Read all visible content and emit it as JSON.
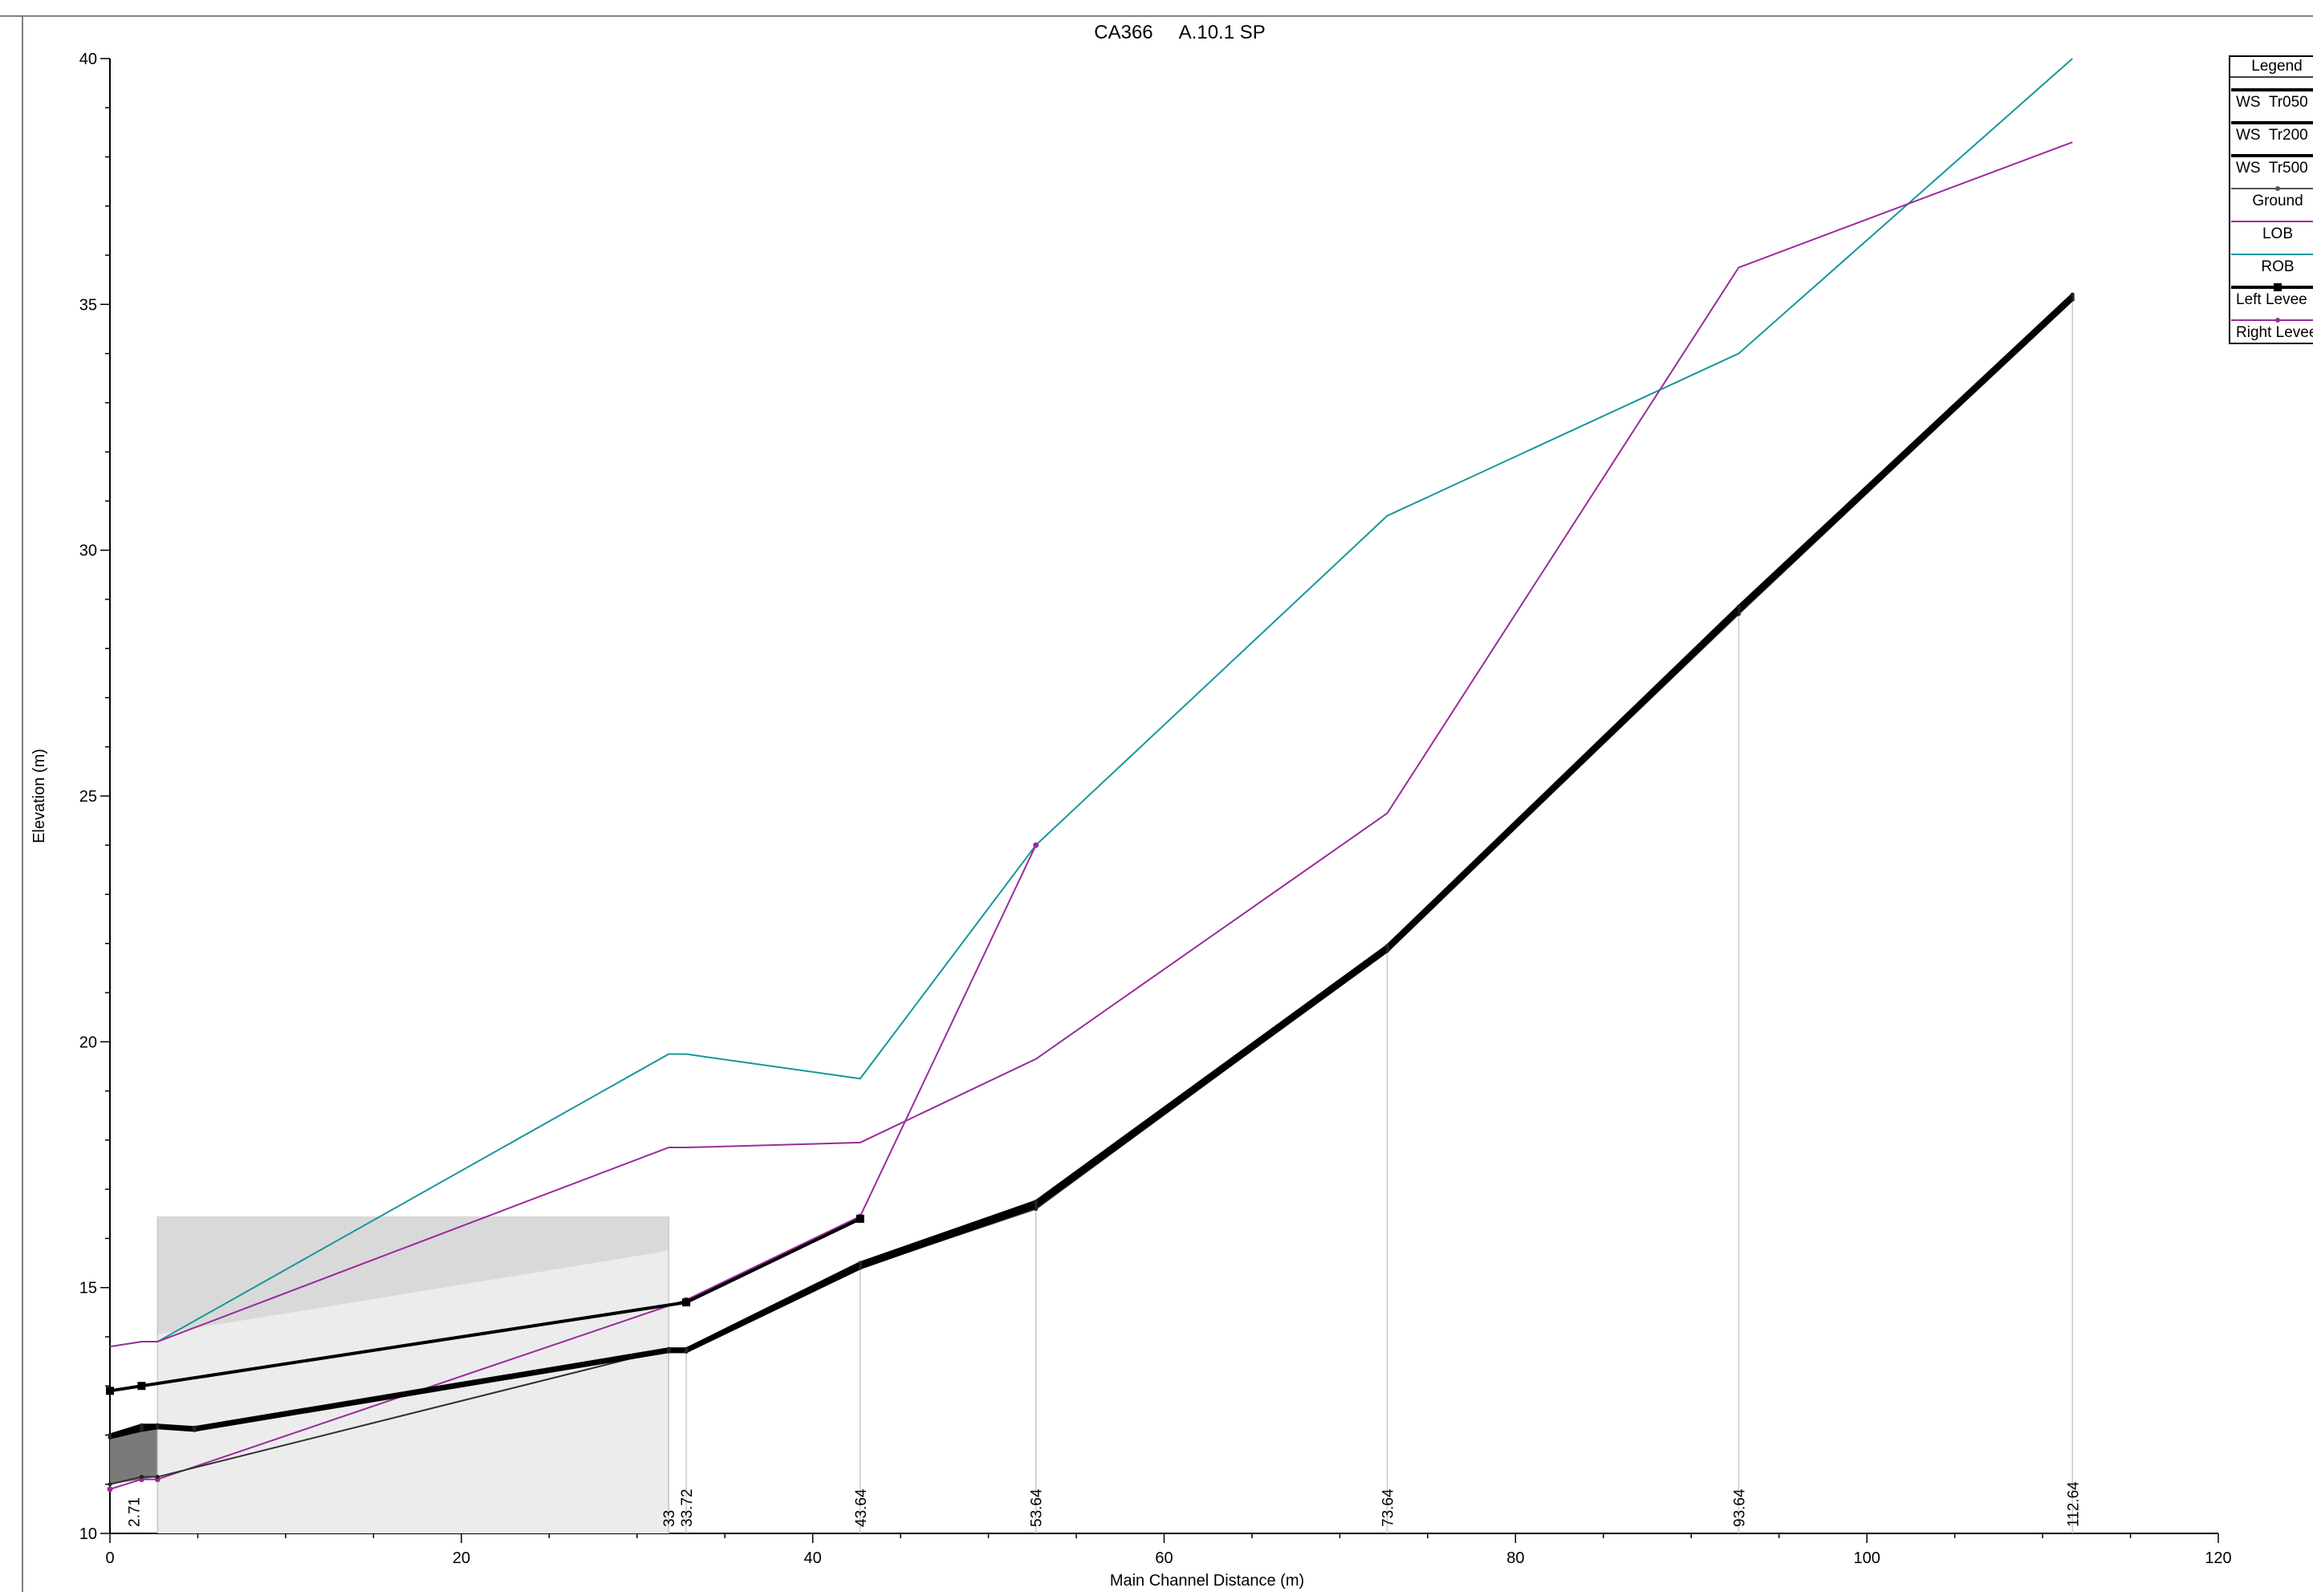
{
  "chart_data": {
    "type": "line",
    "title": "CA366     A.10.1 SP",
    "xlabel": "Main Channel Distance (m)",
    "ylabel": "Elevation (m)",
    "xlim": [
      0,
      120
    ],
    "ylim": [
      10,
      40
    ],
    "x_ticks": [
      0,
      20,
      40,
      60,
      80,
      100,
      120
    ],
    "y_ticks": [
      10,
      15,
      20,
      25,
      30,
      35,
      40
    ],
    "grid": false,
    "legend_position": "top-right (clipped)",
    "station_labels": [
      {
        "x": 1.35,
        "label": "2.71"
      },
      {
        "x": 31.8,
        "label": "33"
      },
      {
        "x": 32.8,
        "label": "33.72"
      },
      {
        "x": 42.7,
        "label": "43.64"
      },
      {
        "x": 52.7,
        "label": "53.64"
      },
      {
        "x": 72.7,
        "label": "73.64"
      },
      {
        "x": 92.7,
        "label": "93.64"
      },
      {
        "x": 111.7,
        "label": "112.64"
      }
    ],
    "station_lines_x": [
      2.71,
      31.8,
      32.8,
      42.7,
      52.7,
      72.7,
      92.7,
      111.7
    ],
    "legend": {
      "title": "Legend",
      "entries": [
        {
          "label": "WS  Tr050",
          "color": "#000000",
          "style": "thick"
        },
        {
          "label": "WS  Tr200",
          "color": "#000000",
          "style": "thick"
        },
        {
          "label": "WS  Tr500",
          "color": "#000000",
          "style": "thick"
        },
        {
          "label": "Ground",
          "color": "#555555",
          "style": "thin-marker"
        },
        {
          "label": "LOB",
          "color": "#9b2b9b",
          "style": "thin"
        },
        {
          "label": "ROB",
          "color": "#17979b",
          "style": "thin"
        },
        {
          "label": "Left Levee",
          "color": "#000000",
          "style": "thick-square"
        },
        {
          "label": "Right Levee",
          "color": "#9b2b9b",
          "style": "thin-dot"
        }
      ]
    },
    "series": [
      {
        "name": "WS  Tr050",
        "color": "#000000",
        "x": [
          0,
          1.8,
          2.71,
          4.8,
          31.8,
          32.8,
          42.7,
          52.7,
          72.7,
          92.7,
          111.7
        ],
        "y": [
          12.0,
          12.2,
          12.2,
          12.15,
          13.75,
          13.75,
          15.5,
          16.75,
          21.95,
          28.85,
          35.2
        ]
      },
      {
        "name": "WS  Tr200",
        "color": "#000000",
        "x": [
          0,
          1.8,
          2.71,
          4.8,
          31.8,
          32.8,
          42.7,
          52.7,
          72.7,
          92.7,
          111.7
        ],
        "y": [
          12.0,
          12.15,
          12.2,
          12.12,
          13.75,
          13.75,
          15.45,
          16.7,
          21.9,
          28.8,
          35.15
        ]
      },
      {
        "name": "WS  Tr500",
        "color": "#000000",
        "x": [
          0,
          1.8,
          2.71,
          4.8,
          31.8,
          32.8,
          42.7,
          52.7,
          72.7,
          92.7,
          111.7
        ],
        "y": [
          11.95,
          12.1,
          12.15,
          12.1,
          13.7,
          13.7,
          15.4,
          16.65,
          21.85,
          28.75,
          35.1
        ]
      },
      {
        "name": "Ground",
        "color": "#555555",
        "x": [
          0,
          1.8,
          2.71,
          31.8,
          32.8,
          42.7,
          52.7,
          72.7,
          92.7,
          111.7
        ],
        "y": [
          11.0,
          11.15,
          11.15,
          13.75,
          13.7,
          15.4,
          16.6,
          21.85,
          28.7,
          35.1
        ]
      },
      {
        "name": "LOB",
        "color": "#9b2b9b",
        "x": [
          0,
          1.8,
          2.71,
          31.8,
          32.8,
          42.7,
          52.7,
          72.7,
          92.7,
          111.7
        ],
        "y": [
          13.8,
          13.9,
          13.9,
          17.85,
          17.85,
          17.95,
          19.65,
          24.65,
          35.75,
          38.3
        ]
      },
      {
        "name": "ROB",
        "color": "#17979b",
        "x": [
          0,
          1.8,
          2.71,
          31.8,
          32.8,
          42.7,
          52.7,
          72.7,
          92.7,
          111.7
        ],
        "y": [
          13.8,
          13.9,
          13.9,
          19.75,
          19.75,
          19.25,
          24.0,
          30.7,
          34.0,
          40.0
        ]
      },
      {
        "name": "Left Levee",
        "color": "#000000",
        "x": [
          0,
          1.8,
          32.8,
          42.7
        ],
        "y": [
          12.9,
          13.0,
          14.7,
          16.4
        ]
      },
      {
        "name": "Right Levee",
        "color": "#9b2b9b",
        "x": [
          0,
          1.8,
          2.71,
          32.8,
          42.7,
          52.7
        ],
        "y": [
          10.9,
          11.1,
          11.1,
          14.75,
          16.45,
          24.0
        ]
      }
    ],
    "bridge": {
      "x_start": 2.71,
      "x_end": 31.8,
      "deck_top": 16.45,
      "low_chord_left": 14.05,
      "low_chord_right": 15.75
    }
  }
}
